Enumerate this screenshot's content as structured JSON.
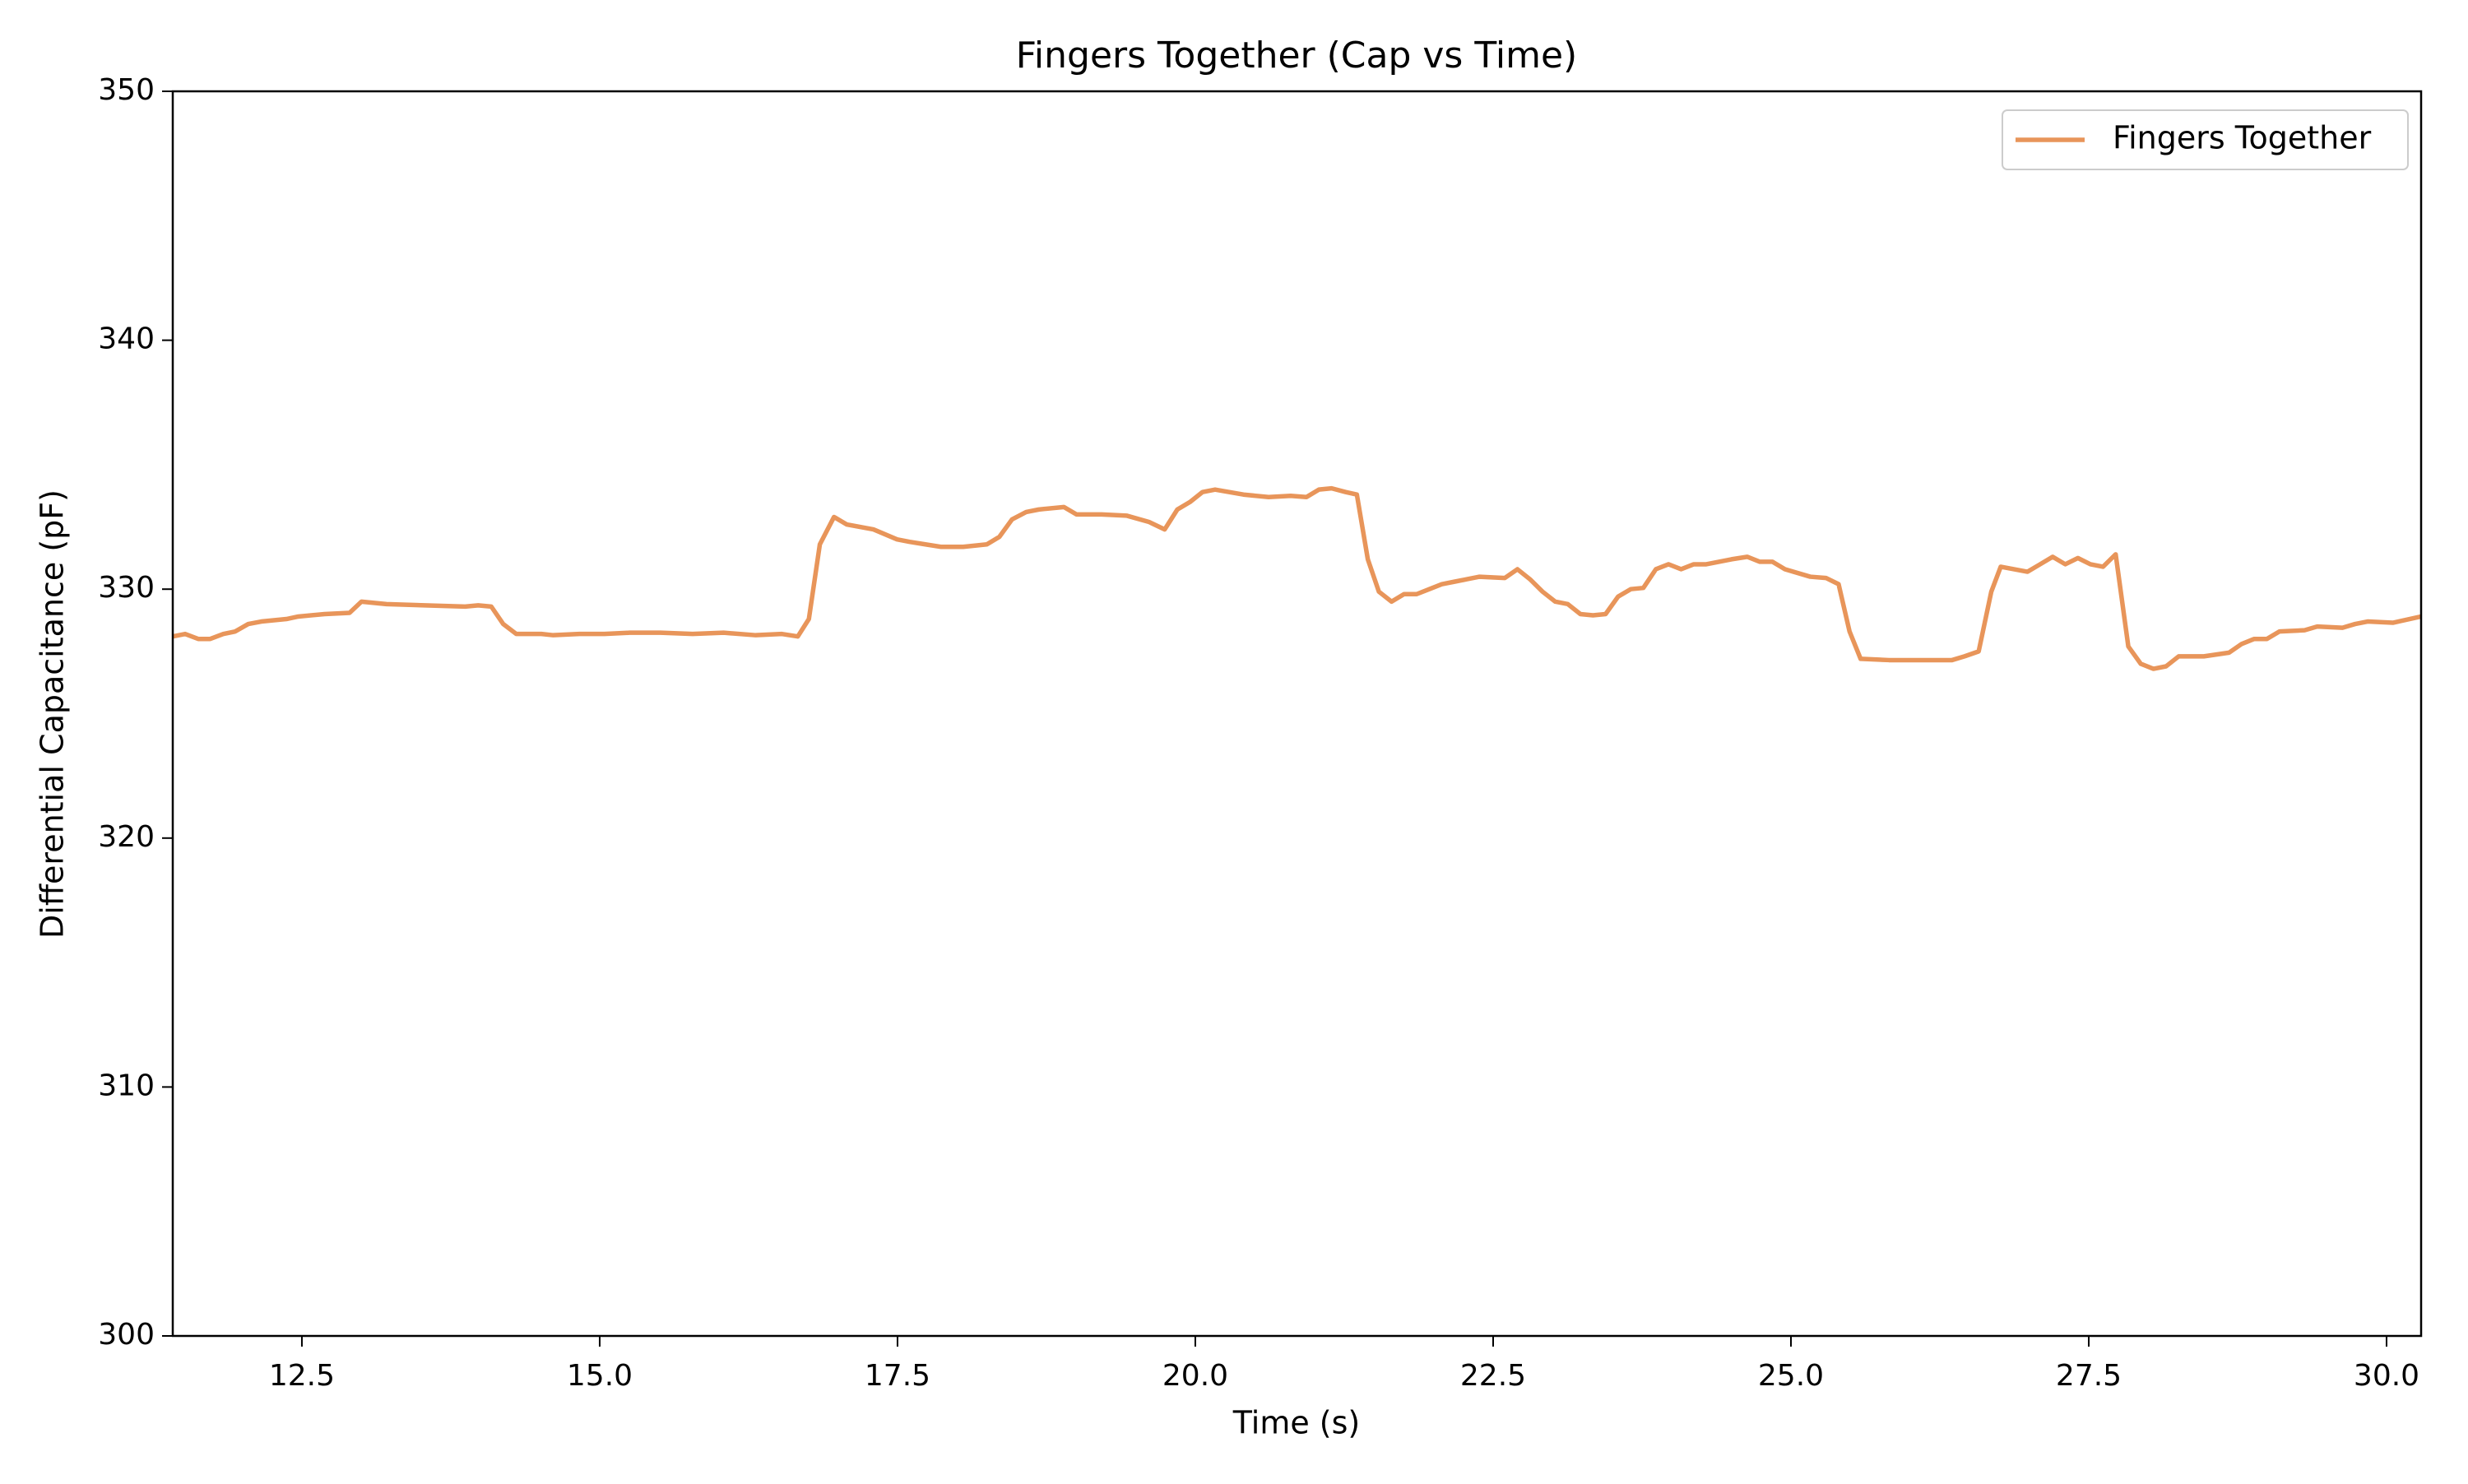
{
  "chart_data": {
    "type": "line",
    "title": "Fingers Together (Cap vs Time)",
    "x_label": "Time (s)",
    "y_label": "Differential Capacitance (pF)",
    "x": [
      11.416,
      11.52,
      11.63,
      11.73,
      11.84,
      11.94,
      12.05,
      12.16,
      12.37,
      12.47,
      12.69,
      12.9,
      13.0,
      13.21,
      13.53,
      13.87,
      13.98,
      14.09,
      14.19,
      14.3,
      14.51,
      14.61,
      14.83,
      15.04,
      15.25,
      15.51,
      15.78,
      16.04,
      16.31,
      16.53,
      16.663,
      16.756,
      16.848,
      16.967,
      17.073,
      17.298,
      17.496,
      17.602,
      17.734,
      17.866,
      18.051,
      18.25,
      18.355,
      18.461,
      18.58,
      18.686,
      18.897,
      19.003,
      19.214,
      19.426,
      19.611,
      19.743,
      19.849,
      19.955,
      20.06,
      20.166,
      20.404,
      20.615,
      20.8,
      20.933,
      21.038,
      21.144,
      21.263,
      21.356,
      21.448,
      21.541,
      21.647,
      21.752,
      21.858,
      21.964,
      22.069,
      22.175,
      22.281,
      22.386,
      22.598,
      22.704,
      22.809,
      22.915,
      23.021,
      23.127,
      23.232,
      23.338,
      23.444,
      23.549,
      23.655,
      23.761,
      23.866,
      23.972,
      24.078,
      24.184,
      24.289,
      24.501,
      24.633,
      24.739,
      24.845,
      24.95,
      25.162,
      25.294,
      25.4,
      25.492,
      25.585,
      25.823,
      26.087,
      26.352,
      26.457,
      26.576,
      26.682,
      26.761,
      26.986,
      27.092,
      27.197,
      27.303,
      27.409,
      27.514,
      27.62,
      27.726,
      27.832,
      27.937,
      28.043,
      28.149,
      28.255,
      28.466,
      28.678,
      28.784,
      28.889,
      28.995,
      29.101,
      29.312,
      29.418,
      29.63,
      29.736,
      29.841,
      30.053,
      30.29
    ],
    "series": [
      {
        "name": "Fingers Together",
        "color": "#e8955a",
        "values": [
          328.1,
          328.2,
          328.0,
          328.0,
          328.2,
          328.3,
          328.6,
          328.7,
          328.8,
          328.9,
          329.0,
          329.05,
          329.5,
          329.4,
          329.35,
          329.3,
          329.35,
          329.3,
          328.6,
          328.2,
          328.2,
          328.15,
          328.2,
          328.2,
          328.25,
          328.25,
          328.2,
          328.25,
          328.15,
          328.2,
          328.1,
          328.8,
          331.8,
          332.9,
          332.6,
          332.4,
          332.0,
          331.9,
          331.8,
          331.7,
          331.7,
          331.8,
          332.1,
          332.8,
          333.1,
          333.2,
          333.3,
          333.0,
          333.0,
          332.95,
          332.7,
          332.4,
          333.2,
          333.5,
          333.9,
          334.0,
          333.8,
          333.7,
          333.75,
          333.7,
          334.0,
          334.05,
          333.9,
          333.8,
          331.2,
          329.9,
          329.5,
          329.8,
          329.8,
          330.0,
          330.2,
          330.3,
          330.4,
          330.5,
          330.45,
          330.8,
          330.4,
          329.9,
          329.5,
          329.4,
          329.0,
          328.95,
          329.0,
          329.7,
          330.0,
          330.05,
          330.8,
          331.0,
          330.8,
          331.0,
          331.0,
          331.2,
          331.3,
          331.1,
          331.1,
          330.8,
          330.5,
          330.45,
          330.2,
          328.3,
          327.2,
          327.15,
          327.15,
          327.15,
          327.3,
          327.5,
          329.9,
          330.9,
          330.7,
          331.0,
          331.3,
          331.0,
          331.25,
          331.0,
          330.9,
          331.4,
          327.7,
          327.0,
          326.8,
          326.9,
          327.3,
          327.3,
          327.45,
          327.8,
          328.0,
          328.0,
          328.3,
          328.35,
          328.5,
          328.45,
          328.6,
          328.7,
          328.65,
          328.9
        ]
      }
    ],
    "xlim": [
      11.416,
      30.29
    ],
    "ylim": [
      300,
      350
    ],
    "xticks": [
      {
        "value": 12.5,
        "label": "12.5"
      },
      {
        "value": 15.0,
        "label": "15.0"
      },
      {
        "value": 17.5,
        "label": "17.5"
      },
      {
        "value": 20.0,
        "label": "20.0"
      },
      {
        "value": 22.5,
        "label": "22.5"
      },
      {
        "value": 25.0,
        "label": "25.0"
      },
      {
        "value": 27.5,
        "label": "27.5"
      },
      {
        "value": 30.0,
        "label": "30.0"
      }
    ],
    "yticks": [
      300,
      310,
      320,
      330,
      340,
      350
    ],
    "grid": false,
    "legend": "upper right"
  }
}
